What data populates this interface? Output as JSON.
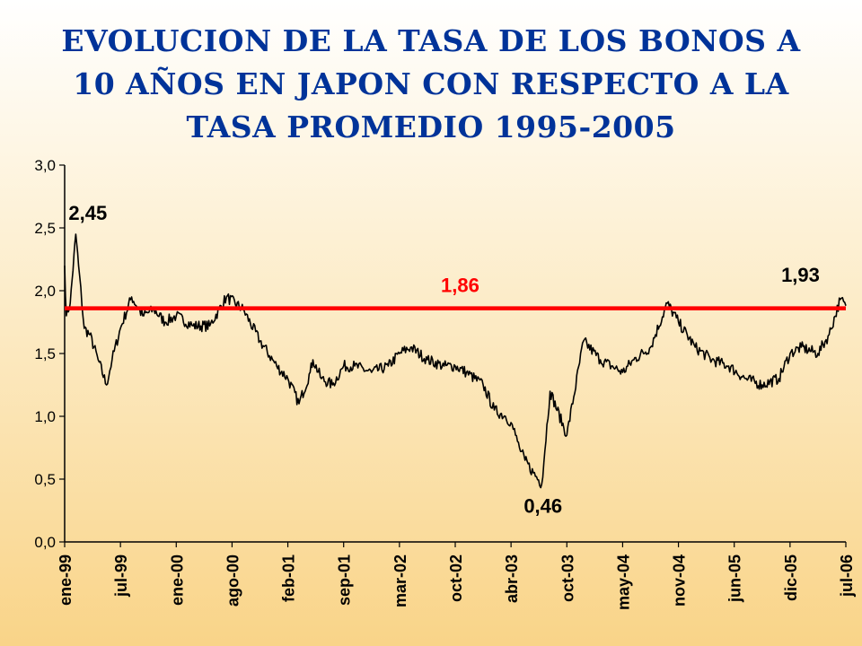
{
  "title_lines": [
    "EVOLUCION DE LA TASA DE LOS BONOS A",
    "10 AÑOS EN JAPON CON RESPECTO A LA",
    "TASA PROMEDIO 1995-2005"
  ],
  "chart_data": {
    "type": "line",
    "title": "EVOLUCION DE LA TASA DE LOS BONOS A 10 AÑOS EN JAPON CON RESPECTO A LA TASA PROMEDIO 1995-2005",
    "xlabel": "",
    "ylabel": "",
    "ylim": [
      0,
      3.0
    ],
    "y_ticks": [
      "0,0",
      "0,5",
      "1,0",
      "1,5",
      "2,0",
      "2,5",
      "3,0"
    ],
    "x_ticks": [
      "ene-99",
      "jul-99",
      "ene-00",
      "ago-00",
      "feb-01",
      "sep-01",
      "mar-02",
      "oct-02",
      "abr-03",
      "oct-03",
      "may-04",
      "nov-04",
      "jun-05",
      "dic-05",
      "jul-06"
    ],
    "grid": false,
    "series": [
      {
        "color": "#000000",
        "x": [
          0,
          0.03,
          0.1,
          0.2,
          0.25,
          0.35,
          0.45,
          0.6,
          0.75,
          0.85,
          1.0,
          1.2,
          1.4,
          1.6,
          1.8,
          2.0,
          2.3,
          2.6,
          2.9,
          3.2,
          3.5,
          3.8,
          4.0,
          4.2,
          4.4,
          4.45,
          4.6,
          4.8,
          5.0,
          5.2,
          5.5,
          5.8,
          6.0,
          6.2,
          6.5,
          6.8,
          7.0,
          7.2,
          7.5,
          7.7,
          7.9,
          8.0,
          8.08,
          8.15,
          8.25,
          8.4,
          8.55,
          8.7,
          9.0,
          9.3,
          9.6,
          9.8,
          10.0,
          10.2,
          10.5,
          10.8,
          11.0,
          11.3,
          11.6,
          11.9,
          12.2,
          12.5,
          12.8,
          13.0,
          13.2,
          13.5,
          13.7,
          13.9,
          14.0
        ],
        "values": [
          2.2,
          1.8,
          1.9,
          2.45,
          2.2,
          1.7,
          1.65,
          1.45,
          1.25,
          1.45,
          1.7,
          1.95,
          1.8,
          1.85,
          1.75,
          1.8,
          1.72,
          1.72,
          1.95,
          1.85,
          1.6,
          1.4,
          1.3,
          1.1,
          1.35,
          1.45,
          1.3,
          1.25,
          1.4,
          1.4,
          1.35,
          1.4,
          1.5,
          1.55,
          1.45,
          1.4,
          1.4,
          1.35,
          1.25,
          1.05,
          1.0,
          0.95,
          0.85,
          0.75,
          0.65,
          0.55,
          0.46,
          1.2,
          0.85,
          1.6,
          1.45,
          1.4,
          1.35,
          1.45,
          1.55,
          1.9,
          1.75,
          1.55,
          1.45,
          1.4,
          1.3,
          1.25,
          1.3,
          1.5,
          1.55,
          1.5,
          1.65,
          1.93,
          1.88
        ]
      },
      {
        "color": "#ff0000",
        "x": [
          0,
          14.0
        ],
        "values": [
          1.86,
          1.86
        ]
      }
    ],
    "annotations": [
      {
        "text": "2,45",
        "x": 0.2,
        "y": 2.45,
        "color": "#000000"
      },
      {
        "text": "1,86",
        "x": 7.0,
        "y": 1.86,
        "color": "#ff0000"
      },
      {
        "text": "0,46",
        "x": 8.55,
        "y": 0.46,
        "color": "#000000"
      },
      {
        "text": "1,93",
        "x": 13.1,
        "y": 1.93,
        "color": "#000000"
      }
    ]
  }
}
